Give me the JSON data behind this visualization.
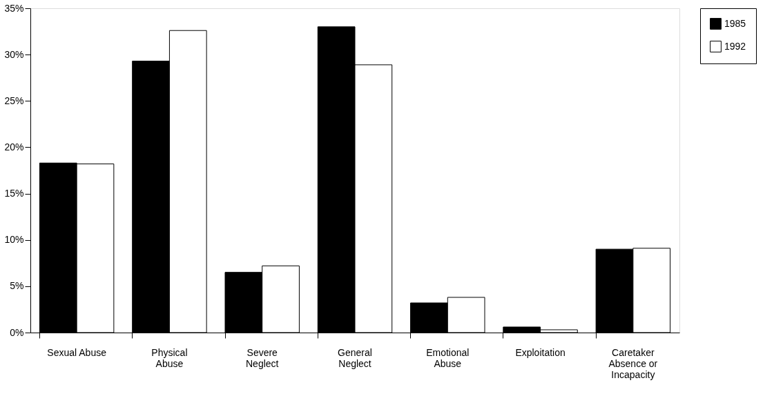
{
  "chart_data": {
    "type": "bar",
    "categories": [
      "Sexual Abuse",
      "Physical Abuse",
      "Severe Neglect",
      "General Neglect",
      "Emotional Abuse",
      "Exploitation",
      "Caretaker Absence or Incapacity"
    ],
    "series": [
      {
        "name": "1985",
        "color": "#000000",
        "values": [
          18.3,
          29.3,
          6.5,
          33.0,
          3.2,
          0.6,
          9.0
        ]
      },
      {
        "name": "1992",
        "color": "#ffffff",
        "values": [
          18.2,
          32.6,
          7.2,
          28.9,
          3.8,
          0.3,
          9.1
        ]
      }
    ],
    "ylim": [
      0,
      35
    ],
    "yticks": [
      {
        "value": 0,
        "label": "0%"
      },
      {
        "value": 5,
        "label": "5%"
      },
      {
        "value": 10,
        "label": "10%"
      },
      {
        "value": 15,
        "label": "15%"
      },
      {
        "value": 20,
        "label": "20%"
      },
      {
        "value": 25,
        "label": "25%"
      },
      {
        "value": 30,
        "label": "30%"
      },
      {
        "value": 35,
        "label": "35%"
      }
    ],
    "grid": false,
    "legend": "right"
  }
}
